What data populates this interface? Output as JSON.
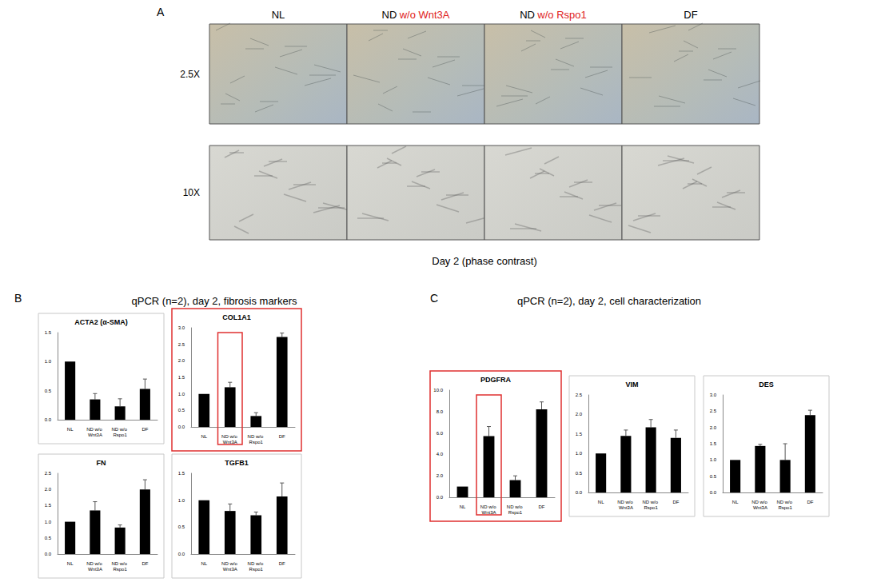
{
  "figure": {
    "panel_a": {
      "label": "A",
      "columns": [
        [
          "NL"
        ],
        [
          "ND",
          "w/o Wnt3A"
        ],
        [
          "ND",
          "w/o Rspo1"
        ],
        [
          "DF"
        ]
      ],
      "rows": [
        "2.5X",
        "10X"
      ],
      "caption": "Day 2 (phase contrast)"
    },
    "panel_b": {
      "label": "B",
      "title": "qPCR (n=2), day 2, fibrosis markers"
    },
    "panel_c": {
      "label": "C",
      "title": "qPCR (n=2), day 2, cell characterization"
    }
  },
  "chart_data": [
    {
      "type": "bar",
      "title": "ACTA2 (α-SMA)",
      "categories": [
        "NL",
        "ND w/o Wnt3A",
        "ND w/o Rspo1",
        "DF"
      ],
      "values": [
        1.0,
        0.35,
        0.23,
        0.53
      ],
      "errors": [
        0,
        0.1,
        0.13,
        0.17
      ],
      "color": "#000000",
      "ylim": [
        0,
        1.5
      ],
      "yticks": [
        {
          "value": 0,
          "label": "0.0"
        },
        {
          "value": 0.5,
          "label": "0.5"
        },
        {
          "value": 1,
          "label": "1.0"
        },
        {
          "value": 1.5,
          "label": "1.5"
        }
      ],
      "grid": false
    },
    {
      "type": "bar",
      "title": "COL1A1",
      "categories": [
        "NL",
        "ND w/o Wnt3A",
        "ND w/o Rspo1",
        "DF"
      ],
      "values": [
        1.0,
        1.2,
        0.33,
        2.72
      ],
      "errors": [
        0,
        0.15,
        0.1,
        0.12
      ],
      "color": "#000000",
      "ylim": [
        0,
        3
      ],
      "yticks": [
        {
          "value": 0,
          "label": "0.0"
        },
        {
          "value": 0.5,
          "label": "0.5"
        },
        {
          "value": 1,
          "label": "1.0"
        },
        {
          "value": 1.5,
          "label": "1.5"
        },
        {
          "value": 2,
          "label": "2.0"
        },
        {
          "value": 2.5,
          "label": "2.5"
        },
        {
          "value": 3,
          "label": "3.0"
        }
      ],
      "grid": false
    },
    {
      "type": "bar",
      "title": "FN",
      "categories": [
        "NL",
        "ND w/o Wnt3A",
        "ND w/o Rspo1",
        "DF"
      ],
      "values": [
        1.0,
        1.35,
        0.82,
        2.0
      ],
      "errors": [
        0,
        0.27,
        0.08,
        0.3
      ],
      "color": "#000000",
      "ylim": [
        0,
        2.5
      ],
      "yticks": [
        {
          "value": 0,
          "label": "0.0"
        },
        {
          "value": 0.5,
          "label": "0.5"
        },
        {
          "value": 1,
          "label": "1.0"
        },
        {
          "value": 1.5,
          "label": "1.5"
        },
        {
          "value": 2,
          "label": "2.0"
        },
        {
          "value": 2.5,
          "label": "2.5"
        }
      ],
      "grid": false
    },
    {
      "type": "bar",
      "title": "TGFB1",
      "categories": [
        "NL",
        "ND w/o Wnt3A",
        "ND w/o Rspo1",
        "DF"
      ],
      "values": [
        1.0,
        0.8,
        0.72,
        1.07
      ],
      "errors": [
        0,
        0.13,
        0.06,
        0.25
      ],
      "color": "#000000",
      "ylim": [
        0,
        1.5
      ],
      "yticks": [
        {
          "value": 0,
          "label": "0.0"
        },
        {
          "value": 0.5,
          "label": "0.5"
        },
        {
          "value": 1,
          "label": "1.0"
        },
        {
          "value": 1.5,
          "label": "1.5"
        }
      ],
      "grid": false
    },
    {
      "type": "bar",
      "title": "PDGFRA",
      "categories": [
        "NL",
        "ND w/o Wnt3A",
        "ND w/o Rspo1",
        "DF"
      ],
      "values": [
        1.0,
        5.7,
        1.6,
        8.2
      ],
      "errors": [
        0,
        0.9,
        0.4,
        0.7
      ],
      "color": "#000000",
      "ylim": [
        0,
        10
      ],
      "yticks": [
        {
          "value": 0,
          "label": "0.0"
        },
        {
          "value": 2,
          "label": "2.0"
        },
        {
          "value": 4,
          "label": "4.0"
        },
        {
          "value": 6,
          "label": "6.0"
        },
        {
          "value": 8,
          "label": "8.0"
        },
        {
          "value": 10,
          "label": "10.0"
        }
      ],
      "grid": false
    },
    {
      "type": "bar",
      "title": "VIM",
      "categories": [
        "NL",
        "ND w/o Wnt3A",
        "ND w/o Rspo1",
        "DF"
      ],
      "values": [
        1.0,
        1.45,
        1.67,
        1.4
      ],
      "errors": [
        0,
        0.15,
        0.2,
        0.2
      ],
      "color": "#000000",
      "ylim": [
        0,
        2.5
      ],
      "yticks": [
        {
          "value": 0,
          "label": "0.0"
        },
        {
          "value": 0.5,
          "label": "0.5"
        },
        {
          "value": 1,
          "label": "1.0"
        },
        {
          "value": 1.5,
          "label": "1.5"
        },
        {
          "value": 2,
          "label": "2.0"
        },
        {
          "value": 2.5,
          "label": "2.5"
        }
      ],
      "grid": false
    },
    {
      "type": "bar",
      "title": "DES",
      "categories": [
        "NL",
        "ND w/o Wnt3A",
        "ND w/o Rspo1",
        "DF"
      ],
      "values": [
        1.0,
        1.43,
        1.0,
        2.38
      ],
      "errors": [
        0,
        0.05,
        0.5,
        0.15
      ],
      "color": "#000000",
      "ylim": [
        0,
        3
      ],
      "yticks": [
        {
          "value": 0,
          "label": "0.0"
        },
        {
          "value": 0.5,
          "label": "0.5"
        },
        {
          "value": 1,
          "label": "1.0"
        },
        {
          "value": 1.5,
          "label": "1.5"
        },
        {
          "value": 2,
          "label": "2.0"
        },
        {
          "value": 2.5,
          "label": "2.5"
        },
        {
          "value": 3,
          "label": "3.0"
        }
      ],
      "grid": false
    }
  ]
}
